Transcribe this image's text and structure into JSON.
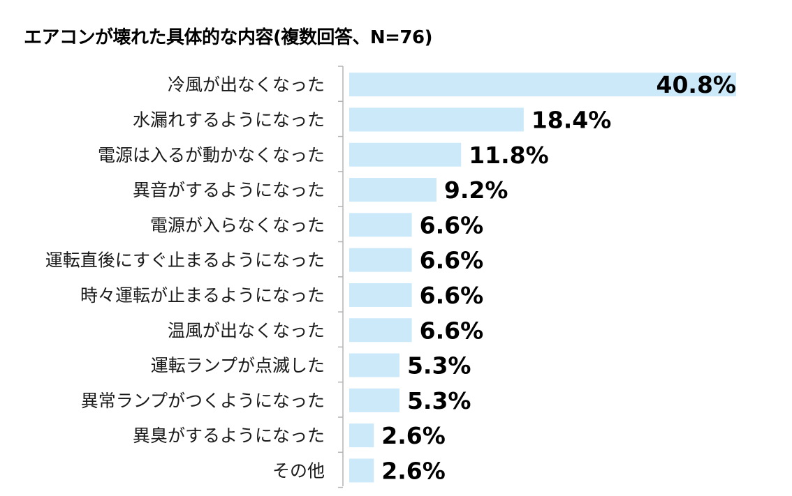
{
  "chart_data": {
    "type": "bar",
    "orientation": "horizontal",
    "title": "エアコンが壊れた具体的な内容(複数回答、N=76)",
    "unit": "%",
    "categories": [
      "冷風が出なくなった",
      "水漏れするようになった",
      "電源は入るが動かなくなった",
      "異音がするようになった",
      "電源が入らなくなった",
      "運転直後にすぐ止まるようになった",
      "時々運転が止まるようになった",
      "温風が出なくなった",
      "運転ランプが点滅した",
      "異常ランプがつくようになった",
      "異臭がするようになった",
      "その他"
    ],
    "values": [
      40.8,
      18.4,
      11.8,
      9.2,
      6.6,
      6.6,
      6.6,
      6.6,
      5.3,
      5.3,
      2.6,
      2.6
    ],
    "data_labels": [
      "40.8%",
      "18.4%",
      "11.8%",
      "9.2%",
      "6.6%",
      "6.6%",
      "6.6%",
      "6.6%",
      "5.3%",
      "5.3%",
      "2.6%",
      "2.6%"
    ],
    "xlim": [
      0,
      40.8
    ],
    "grid": false,
    "legend": "none",
    "bar_color": "#cce9f9",
    "axis_color": "#b3b3b3"
  }
}
